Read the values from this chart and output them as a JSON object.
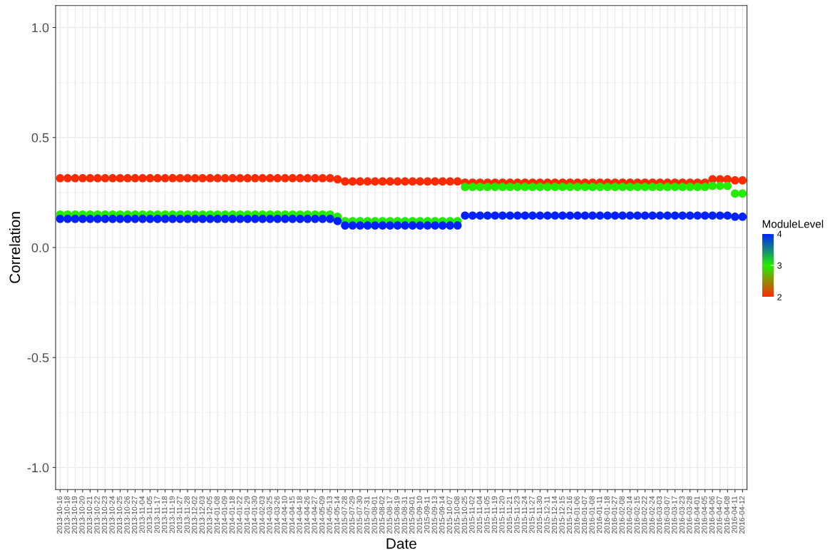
{
  "chart_data": {
    "type": "scatter",
    "xlabel": "Date",
    "ylabel": "Correlation",
    "clabel": "ModuleLevel",
    "categories": [
      "2013-10-16",
      "2013-10-18",
      "2013-10-19",
      "2013-10-20",
      "2013-10-21",
      "2013-10-22",
      "2013-10-23",
      "2013-10-24",
      "2013-10-25",
      "2013-10-26",
      "2013-10-27",
      "2013-11-04",
      "2013-11-05",
      "2013-11-17",
      "2013-11-18",
      "2013-11-19",
      "2013-11-27",
      "2013-11-28",
      "2013-12-02",
      "2013-12-03",
      "2013-12-05",
      "2014-01-08",
      "2014-01-09",
      "2014-01-18",
      "2014-01-22",
      "2014-01-29",
      "2014-01-30",
      "2014-02-03",
      "2014-03-25",
      "2014-03-26",
      "2014-04-10",
      "2014-04-15",
      "2014-04-18",
      "2014-04-26",
      "2014-04-27",
      "2014-05-09",
      "2014-05-13",
      "2014-05-14",
      "2015-07-28",
      "2015-07-29",
      "2015-07-30",
      "2015-07-31",
      "2015-08-01",
      "2015-08-02",
      "2015-08-17",
      "2015-08-19",
      "2015-08-31",
      "2015-09-01",
      "2015-09-10",
      "2015-09-11",
      "2015-09-13",
      "2015-09-14",
      "2015-10-07",
      "2015-10-08",
      "2015-10-25",
      "2015-11-02",
      "2015-11-04",
      "2015-11-05",
      "2015-11-19",
      "2015-11-20",
      "2015-11-21",
      "2015-11-23",
      "2015-11-24",
      "2015-11-27",
      "2015-11-30",
      "2015-12-11",
      "2015-12-14",
      "2015-12-15",
      "2015-12-16",
      "2016-01-06",
      "2016-01-07",
      "2016-01-08",
      "2016-01-11",
      "2016-01-18",
      "2016-01-27",
      "2016-02-08",
      "2016-02-14",
      "2016-02-15",
      "2016-02-22",
      "2016-02-24",
      "2016-03-03",
      "2016-03-07",
      "2016-03-17",
      "2016-03-23",
      "2016-03-28",
      "2016-04-01",
      "2016-04-05",
      "2016-04-06",
      "2016-04-07",
      "2016-04-08",
      "2016-04-11",
      "2016-04-12"
    ],
    "series": [
      {
        "color": "#ff2a00",
        "cvalues": [
          2,
          2,
          2,
          2,
          2,
          2,
          2,
          2,
          2,
          2,
          2,
          2,
          2,
          2,
          2,
          2,
          2,
          2,
          2,
          2,
          2,
          2,
          2,
          2,
          2,
          2,
          2,
          2,
          2,
          2,
          2,
          2,
          2,
          2,
          2,
          2,
          2,
          2,
          2,
          2,
          2,
          2,
          2,
          2,
          2,
          2,
          2,
          2,
          2,
          2,
          2,
          2,
          2,
          2,
          2,
          2,
          2,
          2,
          2,
          2,
          2,
          2,
          2,
          2,
          2,
          2,
          2,
          2,
          2,
          2,
          2,
          2,
          2,
          2,
          2,
          2,
          2,
          2,
          2,
          2,
          2,
          2,
          2,
          2,
          2,
          2,
          2,
          2,
          2,
          2,
          2,
          2
        ],
        "values": [
          0.315,
          0.315,
          0.315,
          0.315,
          0.315,
          0.315,
          0.315,
          0.315,
          0.315,
          0.315,
          0.315,
          0.315,
          0.315,
          0.315,
          0.315,
          0.315,
          0.315,
          0.315,
          0.315,
          0.315,
          0.315,
          0.315,
          0.315,
          0.315,
          0.315,
          0.315,
          0.315,
          0.315,
          0.315,
          0.315,
          0.315,
          0.315,
          0.315,
          0.315,
          0.315,
          0.315,
          0.315,
          0.31,
          0.3,
          0.3,
          0.3,
          0.3,
          0.3,
          0.3,
          0.3,
          0.3,
          0.3,
          0.3,
          0.3,
          0.3,
          0.3,
          0.3,
          0.3,
          0.3,
          0.295,
          0.295,
          0.295,
          0.295,
          0.295,
          0.295,
          0.295,
          0.295,
          0.295,
          0.295,
          0.295,
          0.295,
          0.295,
          0.295,
          0.295,
          0.295,
          0.295,
          0.295,
          0.295,
          0.295,
          0.295,
          0.295,
          0.295,
          0.295,
          0.295,
          0.295,
          0.295,
          0.295,
          0.295,
          0.295,
          0.295,
          0.295,
          0.295,
          0.31,
          0.31,
          0.31,
          0.305,
          0.305
        ]
      },
      {
        "color": "#22ee00",
        "cvalues": [
          3,
          3,
          3,
          3,
          3,
          3,
          3,
          3,
          3,
          3,
          3,
          3,
          3,
          3,
          3,
          3,
          3,
          3,
          3,
          3,
          3,
          3,
          3,
          3,
          3,
          3,
          3,
          3,
          3,
          3,
          3,
          3,
          3,
          3,
          3,
          3,
          3,
          3,
          3,
          3,
          3,
          3,
          3,
          3,
          3,
          3,
          3,
          3,
          3,
          3,
          3,
          3,
          3,
          3,
          3,
          3,
          3,
          3,
          3,
          3,
          3,
          3,
          3,
          3,
          3,
          3,
          3,
          3,
          3,
          3,
          3,
          3,
          3,
          3,
          3,
          3,
          3,
          3,
          3,
          3,
          3,
          3,
          3,
          3,
          3,
          3,
          3,
          3,
          3,
          3,
          3,
          3
        ],
        "values": [
          0.15,
          0.15,
          0.15,
          0.15,
          0.15,
          0.15,
          0.15,
          0.15,
          0.15,
          0.15,
          0.15,
          0.15,
          0.15,
          0.15,
          0.15,
          0.15,
          0.15,
          0.15,
          0.15,
          0.15,
          0.15,
          0.15,
          0.15,
          0.15,
          0.15,
          0.15,
          0.15,
          0.15,
          0.15,
          0.15,
          0.15,
          0.15,
          0.15,
          0.15,
          0.15,
          0.15,
          0.15,
          0.14,
          0.12,
          0.12,
          0.12,
          0.12,
          0.12,
          0.12,
          0.12,
          0.12,
          0.12,
          0.12,
          0.12,
          0.12,
          0.12,
          0.12,
          0.12,
          0.12,
          0.275,
          0.275,
          0.275,
          0.275,
          0.275,
          0.275,
          0.275,
          0.275,
          0.275,
          0.275,
          0.275,
          0.275,
          0.275,
          0.275,
          0.275,
          0.275,
          0.275,
          0.275,
          0.275,
          0.275,
          0.275,
          0.275,
          0.275,
          0.275,
          0.275,
          0.275,
          0.275,
          0.275,
          0.275,
          0.275,
          0.275,
          0.275,
          0.275,
          0.28,
          0.28,
          0.28,
          0.245,
          0.245
        ]
      },
      {
        "color": "#0022ff",
        "cvalues": [
          4,
          4,
          4,
          4,
          4,
          4,
          4,
          4,
          4,
          4,
          4,
          4,
          4,
          4,
          4,
          4,
          4,
          4,
          4,
          4,
          4,
          4,
          4,
          4,
          4,
          4,
          4,
          4,
          4,
          4,
          4,
          4,
          4,
          4,
          4,
          4,
          4,
          4,
          4,
          4,
          4,
          4,
          4,
          4,
          4,
          4,
          4,
          4,
          4,
          4,
          4,
          4,
          4,
          4,
          4,
          4,
          4,
          4,
          4,
          4,
          4,
          4,
          4,
          4,
          4,
          4,
          4,
          4,
          4,
          4,
          4,
          4,
          4,
          4,
          4,
          4,
          4,
          4,
          4,
          4,
          4,
          4,
          4,
          4,
          4,
          4,
          4,
          4,
          4,
          4,
          4,
          4
        ],
        "values": [
          0.13,
          0.13,
          0.13,
          0.13,
          0.13,
          0.13,
          0.13,
          0.13,
          0.13,
          0.13,
          0.13,
          0.13,
          0.13,
          0.13,
          0.13,
          0.13,
          0.13,
          0.13,
          0.13,
          0.13,
          0.13,
          0.13,
          0.13,
          0.13,
          0.13,
          0.13,
          0.13,
          0.13,
          0.13,
          0.13,
          0.13,
          0.13,
          0.13,
          0.13,
          0.13,
          0.13,
          0.13,
          0.12,
          0.1,
          0.1,
          0.1,
          0.1,
          0.1,
          0.1,
          0.1,
          0.1,
          0.1,
          0.1,
          0.1,
          0.1,
          0.1,
          0.1,
          0.1,
          0.1,
          0.145,
          0.145,
          0.145,
          0.145,
          0.145,
          0.145,
          0.145,
          0.145,
          0.145,
          0.145,
          0.145,
          0.145,
          0.145,
          0.145,
          0.145,
          0.145,
          0.145,
          0.145,
          0.145,
          0.145,
          0.145,
          0.145,
          0.145,
          0.145,
          0.145,
          0.145,
          0.145,
          0.145,
          0.145,
          0.145,
          0.145,
          0.145,
          0.145,
          0.145,
          0.145,
          0.145,
          0.14,
          0.14
        ]
      }
    ],
    "ylim": [
      -1.1,
      1.1
    ],
    "yticks": [
      {
        "value": -1.0,
        "label": "-1.0"
      },
      {
        "value": -0.5,
        "label": "-0.5"
      },
      {
        "value": 0.0,
        "label": "0.0"
      },
      0.5,
      {
        "value": 1.0,
        "label": "1.0"
      }
    ],
    "clim": [
      2,
      4
    ],
    "cticks": [
      2,
      3,
      4
    ],
    "grid": true,
    "marker": "circle"
  }
}
